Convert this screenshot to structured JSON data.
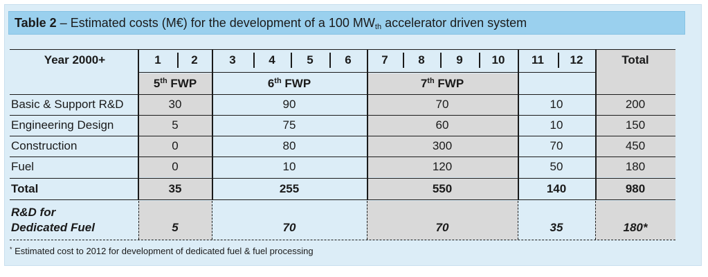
{
  "table": {
    "title_label": "Table 2",
    "title_pre": " – Estimated costs (M€) for the development of a 100 MW",
    "title_sub": "th",
    "title_post": " accelerator driven system",
    "header": {
      "year_label": "Year 2000+",
      "years": [
        "1",
        "2",
        "3",
        "4",
        "5",
        "6",
        "7",
        "8",
        "9",
        "10",
        "11",
        "12"
      ],
      "total": "Total"
    },
    "fwp": [
      {
        "num": "5",
        "sup": "th",
        "label": " FWP"
      },
      {
        "num": "6",
        "sup": "th",
        "label": " FWP"
      },
      {
        "num": "7",
        "sup": "th",
        "label": " FWP"
      }
    ],
    "rows": [
      {
        "label": "Basic & Support R&D",
        "values": [
          "30",
          "90",
          "70",
          "10",
          "200"
        ]
      },
      {
        "label": "Engineering Design",
        "values": [
          "5",
          "75",
          "60",
          "10",
          "150"
        ]
      },
      {
        "label": "Construction",
        "values": [
          "0",
          "80",
          "300",
          "70",
          "450"
        ]
      },
      {
        "label": "Fuel",
        "values": [
          "0",
          "10",
          "120",
          "50",
          "180"
        ]
      }
    ],
    "total_row": {
      "label": "Total",
      "values": [
        "35",
        "255",
        "550",
        "140",
        "980"
      ]
    },
    "dedicated_row": {
      "label_line1": "R&D for",
      "label_line2": "Dedicated Fuel",
      "values": [
        "5",
        "70",
        "70",
        "35",
        "180*"
      ]
    },
    "footnote_mark": "*",
    "footnote": " Estimated cost to 2012 for development of dedicated fuel & fuel processing"
  },
  "colors": {
    "panel_bg": "#dcedf7",
    "title_bg": "#9ad0ee",
    "shaded_cells": "#d9d9d9"
  }
}
